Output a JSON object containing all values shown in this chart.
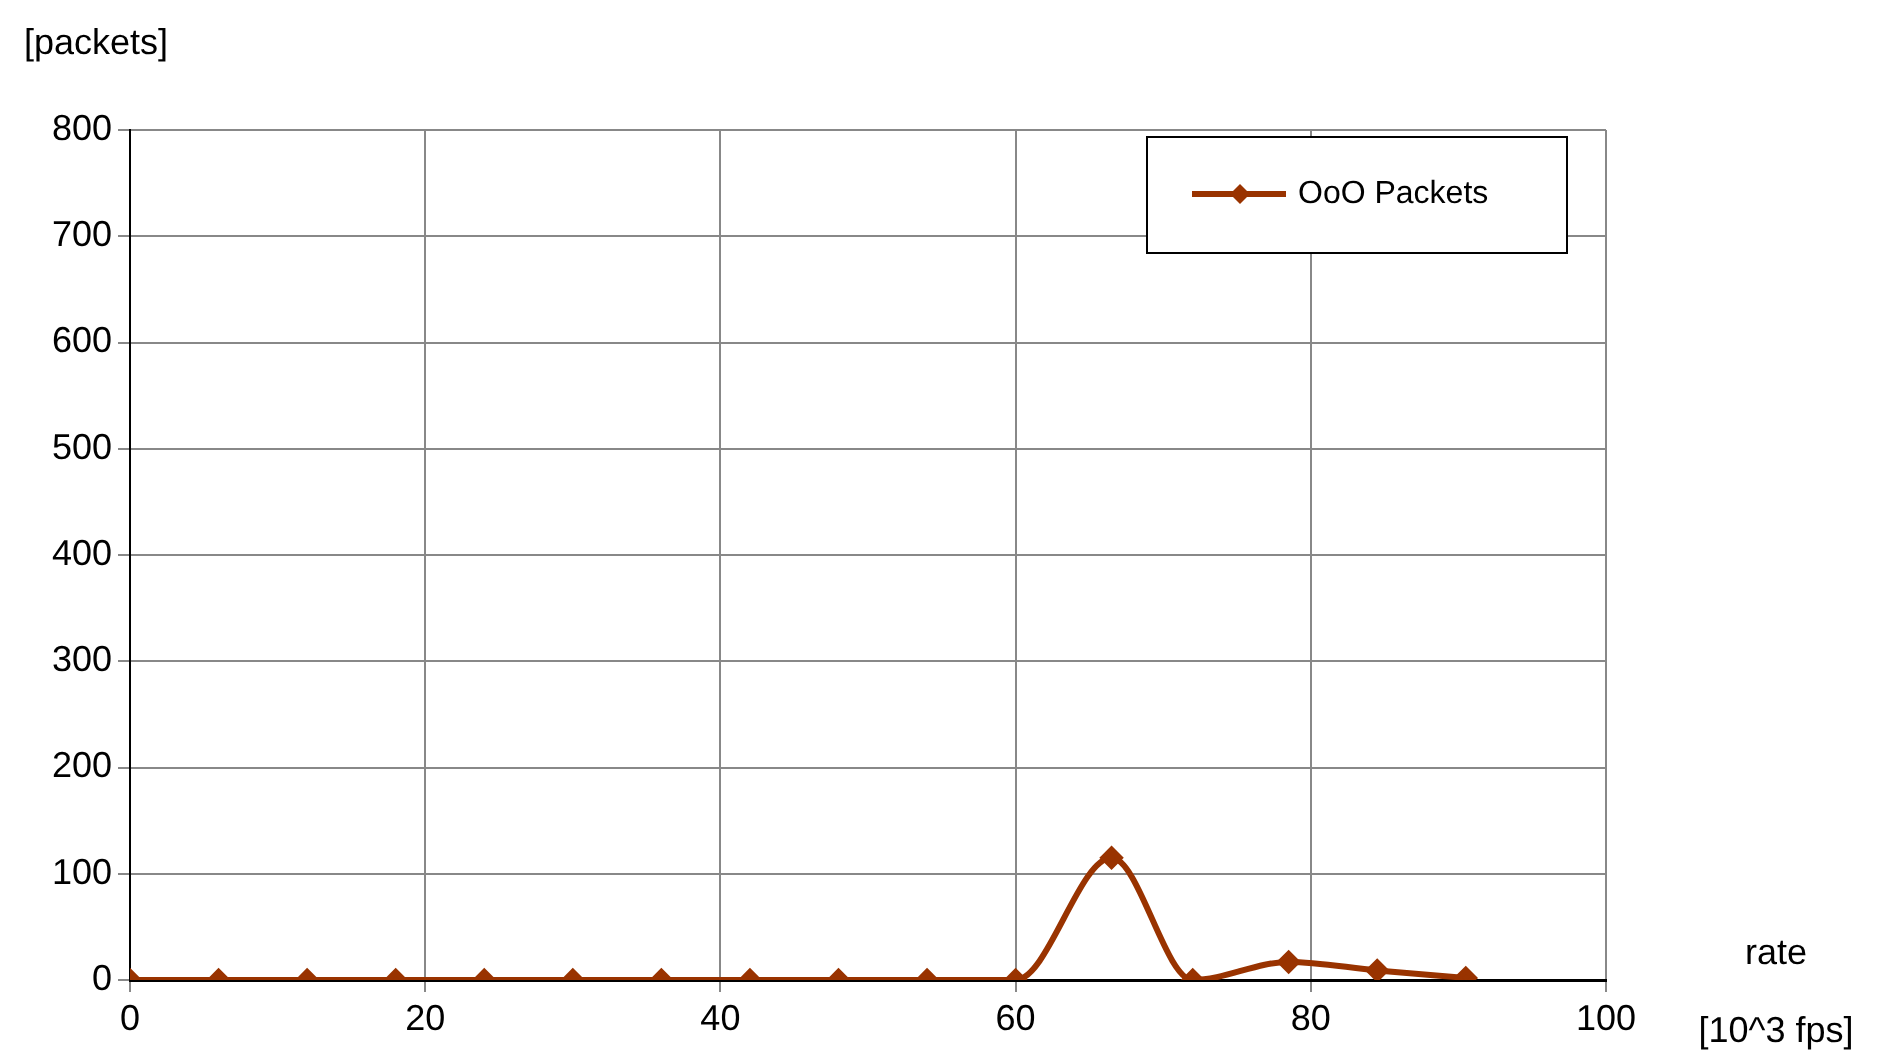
{
  "chart_data": {
    "type": "line",
    "xlabel": "rate [10^3 fps]",
    "ylabel": "[packets]",
    "x": [
      0,
      6,
      12,
      18,
      24,
      30,
      36,
      42,
      48,
      54,
      60,
      66.5,
      72,
      78.5,
      84.5,
      90.5
    ],
    "series": [
      {
        "name": "OoO Packets",
        "color": "#993300",
        "values": [
          0,
          0,
          0,
          0,
          0,
          0,
          0,
          0,
          0,
          0,
          0,
          115,
          0,
          17,
          9,
          2
        ]
      }
    ],
    "xlim": [
      0,
      100
    ],
    "xticks": [
      0,
      20,
      40,
      60,
      80,
      100
    ],
    "ylim": [
      0,
      800
    ],
    "yticks": [
      0,
      100,
      200,
      300,
      400,
      500,
      600,
      700,
      800
    ],
    "grid": true,
    "legend": "top right",
    "marker": "diamond",
    "line_style": "solid"
  }
}
